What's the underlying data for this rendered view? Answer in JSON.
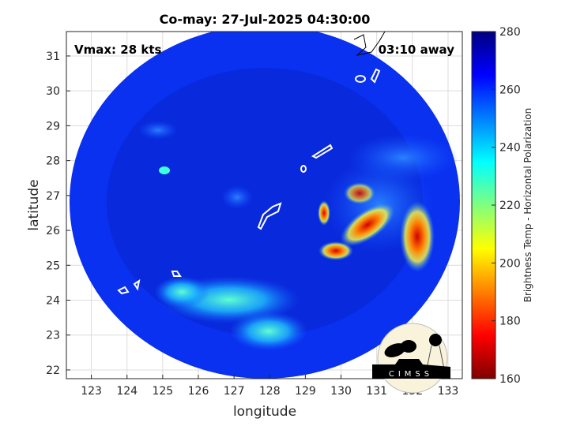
{
  "title": "Co-may: 27-Jul-2025 04:30:00",
  "annotations": {
    "vmax": "Vmax: 28 kts",
    "time_away": "03:10 away"
  },
  "chart_data": {
    "type": "heatmap",
    "title": "Co-may: 27-Jul-2025 04:30:00",
    "xlabel": "longitude",
    "ylabel": "latitude",
    "xlim": [
      122.3,
      133.4
    ],
    "ylim": [
      21.75,
      31.7
    ],
    "xticks": [
      "123",
      "124",
      "125",
      "126",
      "127",
      "128",
      "129",
      "130",
      "131",
      "132",
      "133"
    ],
    "yticks": [
      "22",
      "23",
      "24",
      "25",
      "26",
      "27",
      "28",
      "29",
      "30",
      "31"
    ],
    "grid": true,
    "colorbar": {
      "label": "Brightness Temp - Horizontal Polarization",
      "range": [
        160,
        280
      ],
      "ticks": [
        "160",
        "180",
        "200",
        "220",
        "240",
        "260",
        "280"
      ],
      "colormap": "jet"
    }
  },
  "logo": {
    "text": "CIMSS"
  }
}
